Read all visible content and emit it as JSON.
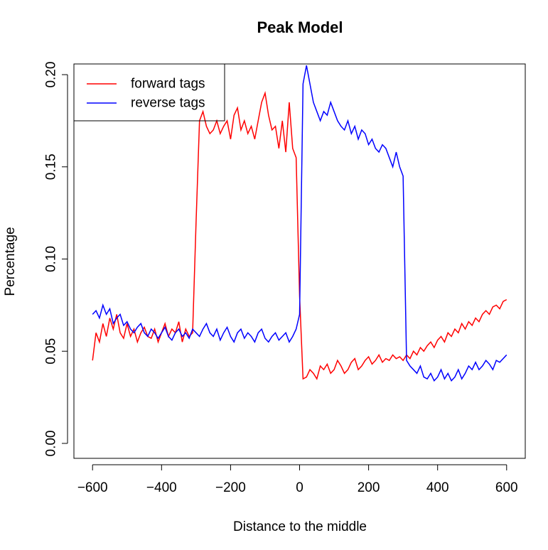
{
  "chart_data": {
    "type": "line",
    "title": "Peak Model",
    "x_label": "Distance to the middle",
    "y_label": "Percentage",
    "x": [
      -600,
      -590,
      -580,
      -570,
      -560,
      -550,
      -540,
      -530,
      -520,
      -510,
      -500,
      -490,
      -480,
      -470,
      -460,
      -450,
      -440,
      -430,
      -420,
      -410,
      -400,
      -390,
      -380,
      -370,
      -360,
      -350,
      -340,
      -330,
      -320,
      -310,
      -300,
      -290,
      -280,
      -270,
      -260,
      -250,
      -240,
      -230,
      -220,
      -210,
      -200,
      -190,
      -180,
      -170,
      -160,
      -150,
      -140,
      -130,
      -120,
      -110,
      -100,
      -90,
      -80,
      -70,
      -60,
      -50,
      -40,
      -30,
      -20,
      -10,
      0,
      10,
      20,
      30,
      40,
      50,
      60,
      70,
      80,
      90,
      100,
      110,
      120,
      130,
      140,
      150,
      160,
      170,
      180,
      190,
      200,
      210,
      220,
      230,
      240,
      250,
      260,
      270,
      280,
      290,
      300,
      310,
      320,
      330,
      340,
      350,
      360,
      370,
      380,
      390,
      400,
      410,
      420,
      430,
      440,
      450,
      460,
      470,
      480,
      490,
      500,
      510,
      520,
      530,
      540,
      550,
      560,
      570,
      580,
      590,
      600
    ],
    "series": [
      {
        "name": "forward tags",
        "color": "#ff0000",
        "values": [
          0.045,
          0.06,
          0.055,
          0.065,
          0.058,
          0.068,
          0.062,
          0.07,
          0.06,
          0.057,
          0.065,
          0.058,
          0.062,
          0.055,
          0.06,
          0.063,
          0.058,
          0.057,
          0.062,
          0.055,
          0.06,
          0.065,
          0.058,
          0.062,
          0.06,
          0.066,
          0.055,
          0.062,
          0.058,
          0.06,
          0.12,
          0.175,
          0.18,
          0.172,
          0.168,
          0.17,
          0.175,
          0.168,
          0.172,
          0.175,
          0.165,
          0.178,
          0.182,
          0.17,
          0.175,
          0.168,
          0.172,
          0.165,
          0.175,
          0.185,
          0.19,
          0.178,
          0.17,
          0.172,
          0.16,
          0.175,
          0.158,
          0.185,
          0.16,
          0.155,
          0.08,
          0.035,
          0.036,
          0.04,
          0.038,
          0.035,
          0.042,
          0.04,
          0.043,
          0.038,
          0.04,
          0.045,
          0.042,
          0.038,
          0.04,
          0.044,
          0.046,
          0.04,
          0.042,
          0.045,
          0.047,
          0.043,
          0.045,
          0.048,
          0.044,
          0.046,
          0.045,
          0.048,
          0.046,
          0.047,
          0.045,
          0.048,
          0.046,
          0.05,
          0.048,
          0.052,
          0.05,
          0.053,
          0.055,
          0.052,
          0.056,
          0.058,
          0.055,
          0.06,
          0.058,
          0.062,
          0.06,
          0.065,
          0.062,
          0.066,
          0.064,
          0.068,
          0.066,
          0.07,
          0.072,
          0.07,
          0.074,
          0.075,
          0.073,
          0.077,
          0.078
        ]
      },
      {
        "name": "reverse tags",
        "color": "#0000ff",
        "values": [
          0.07,
          0.072,
          0.068,
          0.075,
          0.07,
          0.073,
          0.065,
          0.068,
          0.07,
          0.064,
          0.066,
          0.062,
          0.06,
          0.063,
          0.065,
          0.06,
          0.058,
          0.062,
          0.06,
          0.057,
          0.06,
          0.063,
          0.058,
          0.056,
          0.06,
          0.062,
          0.058,
          0.06,
          0.057,
          0.062,
          0.06,
          0.058,
          0.062,
          0.065,
          0.06,
          0.058,
          0.062,
          0.056,
          0.06,
          0.063,
          0.058,
          0.055,
          0.06,
          0.062,
          0.057,
          0.06,
          0.058,
          0.055,
          0.06,
          0.062,
          0.057,
          0.055,
          0.058,
          0.06,
          0.056,
          0.058,
          0.06,
          0.055,
          0.058,
          0.062,
          0.07,
          0.195,
          0.205,
          0.195,
          0.185,
          0.18,
          0.175,
          0.18,
          0.178,
          0.185,
          0.18,
          0.175,
          0.172,
          0.17,
          0.175,
          0.168,
          0.172,
          0.165,
          0.17,
          0.168,
          0.162,
          0.165,
          0.16,
          0.158,
          0.162,
          0.16,
          0.155,
          0.15,
          0.158,
          0.15,
          0.145,
          0.045,
          0.042,
          0.04,
          0.038,
          0.042,
          0.036,
          0.035,
          0.038,
          0.034,
          0.036,
          0.04,
          0.035,
          0.038,
          0.034,
          0.036,
          0.04,
          0.035,
          0.038,
          0.042,
          0.04,
          0.044,
          0.04,
          0.042,
          0.045,
          0.043,
          0.04,
          0.045,
          0.044,
          0.046,
          0.048
        ]
      }
    ],
    "xlim": [
      -654,
      654
    ],
    "ylim": [
      -0.0081,
      0.2058
    ],
    "xticks": [
      {
        "value": -600,
        "label": "−600"
      },
      {
        "value": -400,
        "label": "−400"
      },
      {
        "value": -200,
        "label": "−200"
      },
      0,
      200,
      400,
      600
    ],
    "yticks": [
      {
        "value": 0,
        "label": "0.00"
      },
      {
        "value": 0.05,
        "label": "0.05"
      },
      {
        "value": 0.1,
        "label": "0.10"
      },
      {
        "value": 0.15,
        "label": "0.15"
      },
      {
        "value": 0.2,
        "label": "0.20"
      }
    ],
    "legend": "top-left",
    "grid": false
  }
}
